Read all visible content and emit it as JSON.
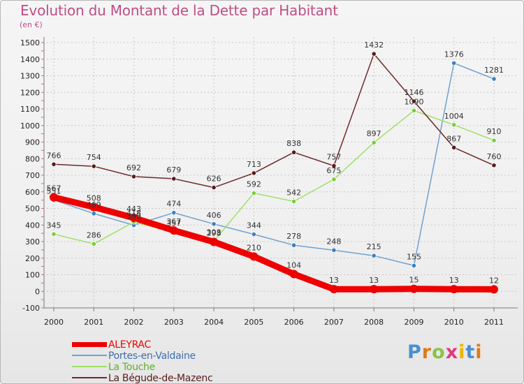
{
  "title": "Evolution du Montant de la Dette par Habitant",
  "subtitle": "(en €)",
  "logo_text": "Proxiti",
  "colors": {
    "title": "#c04d86",
    "grid": "#c8c8c8",
    "axis": "#7a7a7a"
  },
  "chart_data": {
    "type": "line",
    "title": "Evolution du Montant de la Dette par Habitant",
    "ylabel": "(en €)",
    "xlabel": "",
    "categories": [
      "2000",
      "2001",
      "2002",
      "2003",
      "2004",
      "2005",
      "2006",
      "2007",
      "2008",
      "2009",
      "2010",
      "2011"
    ],
    "ylim": [
      -100,
      1500
    ],
    "yticks": [
      "-100",
      "0",
      "100",
      "200",
      "300",
      "400",
      "500",
      "600",
      "700",
      "800",
      "900",
      "1000",
      "1100",
      "1200",
      "1300",
      "1400",
      "1500"
    ],
    "grid": true,
    "legend_position": "bottom-left",
    "series": [
      {
        "name": "ALEYRAC",
        "color": "#ee0000",
        "line": "thick",
        "values": [
          567,
          508,
          443,
          367,
          298,
          210,
          104,
          13,
          13,
          15,
          13,
          12
        ],
        "labels": [
          "567",
          "508",
          "443",
          "367",
          "298",
          "210",
          "104",
          "13",
          "13",
          "15",
          "13",
          "12"
        ]
      },
      {
        "name": "Portes-en-Valdaine",
        "color": "#6fa2cf",
        "marker": "#3d7fbf",
        "line": "thin",
        "values": [
          551,
          469,
          399,
          474,
          406,
          344,
          278,
          248,
          215,
          155,
          1376,
          1281
        ],
        "labels": [
          "551",
          "469",
          "399",
          "474",
          "406",
          "344",
          "278",
          "248",
          "215",
          "155",
          "1376",
          "1281"
        ]
      },
      {
        "name": "La Touche",
        "color": "#9ee067",
        "marker": "#7ccc3c",
        "line": "thin",
        "values": [
          345,
          286,
          418,
          357,
          303,
          592,
          542,
          675,
          897,
          1090,
          1004,
          910
        ],
        "labels": [
          "345",
          "286",
          "418",
          "357",
          "303",
          "592",
          "542",
          "675",
          "897",
          "1090",
          "1004",
          "910"
        ]
      },
      {
        "name": "La Bégude-de-Mazenc",
        "color": "#6e2a2a",
        "marker": "#5a1c1c",
        "line": "thin",
        "values": [
          766,
          754,
          692,
          679,
          626,
          713,
          838,
          757,
          1432,
          1146,
          867,
          760
        ],
        "labels": [
          "766",
          "754",
          "692",
          "679",
          "626",
          "713",
          "838",
          "757",
          "1432",
          "1146",
          "867",
          "760"
        ]
      }
    ]
  }
}
